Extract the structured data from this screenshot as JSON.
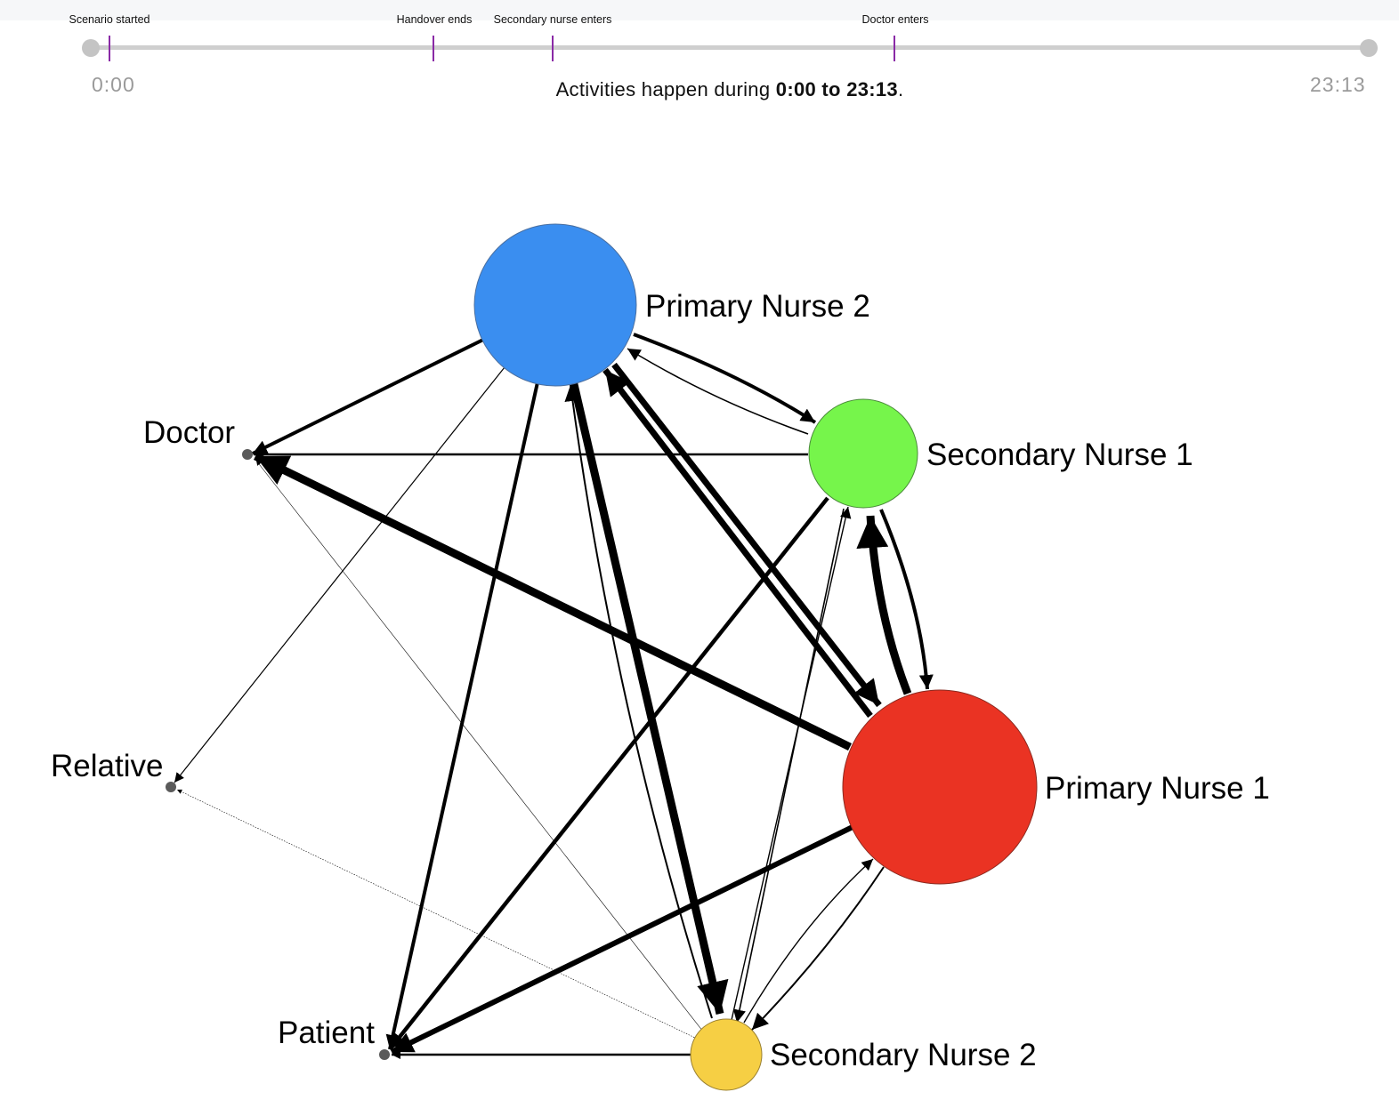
{
  "timeline": {
    "start_label": "0:00",
    "end_label": "23:13",
    "markers": [
      {
        "id": "scenario-started",
        "label": "Scenario started"
      },
      {
        "id": "handover-ends",
        "label": "Handover ends"
      },
      {
        "id": "secondary-nurse-enters",
        "label": "Secondary nurse enters"
      },
      {
        "id": "doctor-enters",
        "label": "Doctor enters"
      }
    ],
    "caption": {
      "prefix": "Activities happen during ",
      "range": "0:00 to 23:13",
      "suffix": "."
    }
  },
  "network": {
    "nodes": [
      {
        "id": "pn2",
        "label": "Primary Nurse 2",
        "color": "#3a8ef0"
      },
      {
        "id": "sn1",
        "label": "Secondary Nurse 1",
        "color": "#76f54b"
      },
      {
        "id": "pn1",
        "label": "Primary Nurse 1",
        "color": "#ea3323"
      },
      {
        "id": "sn2",
        "label": "Secondary Nurse 2",
        "color": "#f6cf44"
      },
      {
        "id": "doctor",
        "label": "Doctor",
        "color": "#5a5a5a"
      },
      {
        "id": "relative",
        "label": "Relative",
        "color": "#5a5a5a"
      },
      {
        "id": "patient",
        "label": "Patient",
        "color": "#5a5a5a"
      }
    ]
  }
}
